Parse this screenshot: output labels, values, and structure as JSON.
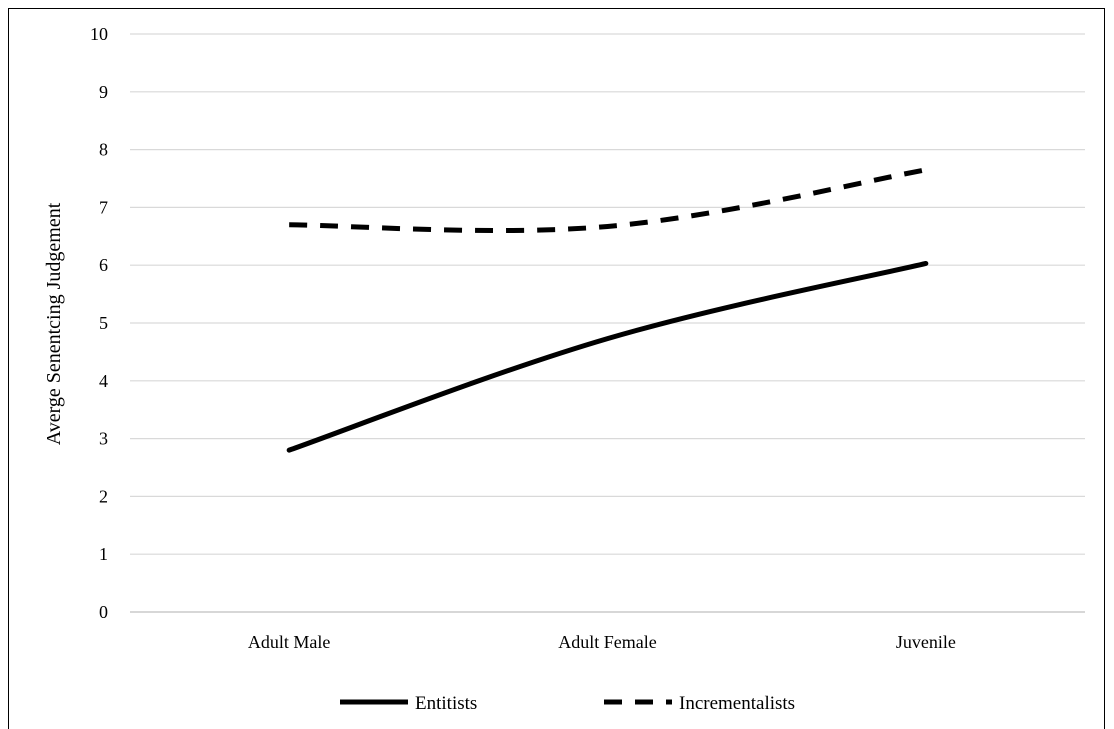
{
  "chart_data": {
    "type": "line",
    "title": "",
    "xlabel": "",
    "ylabel": "Averge Senentcing Judgement",
    "categories": [
      "Adult Male",
      "Adult Female",
      "Juvenile"
    ],
    "ylim": [
      0,
      10
    ],
    "yticks": [
      0,
      1,
      2,
      3,
      4,
      5,
      6,
      7,
      8,
      9,
      10
    ],
    "grid": "horizontal",
    "legend_position": "bottom",
    "series": [
      {
        "name": "Entitists",
        "values": [
          2.8,
          4.73,
          6.03
        ],
        "style": "solid",
        "color": "#000000"
      },
      {
        "name": "Incrementalists",
        "values": [
          6.7,
          6.67,
          7.65
        ],
        "style": "dashed",
        "color": "#000000"
      }
    ]
  }
}
